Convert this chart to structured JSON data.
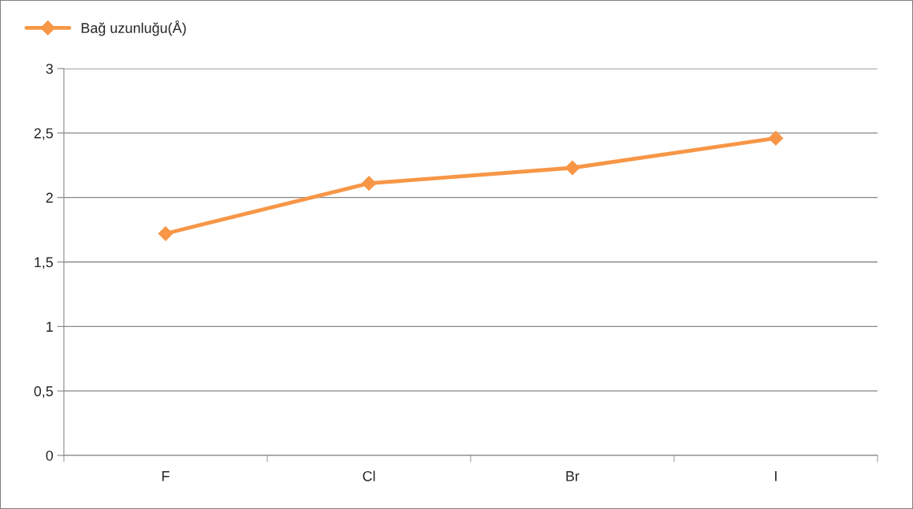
{
  "chart_data": {
    "type": "line",
    "categories": [
      "F",
      "Cl",
      "Br",
      "I"
    ],
    "series": [
      {
        "name": "Bağ uzunluğu(Å)",
        "color": "#f79646",
        "values": [
          1.72,
          2.11,
          2.23,
          2.46
        ]
      }
    ],
    "ylim": [
      0,
      3
    ],
    "yticks": [
      0,
      {
        "value": 0.5,
        "label": "0,5"
      },
      1,
      {
        "value": 1.5,
        "label": "1,5"
      },
      2,
      {
        "value": 2.5,
        "label": "2,5"
      },
      3
    ],
    "grid": "y",
    "legend": "top left",
    "marker": "diamond",
    "line_style": "solid"
  }
}
